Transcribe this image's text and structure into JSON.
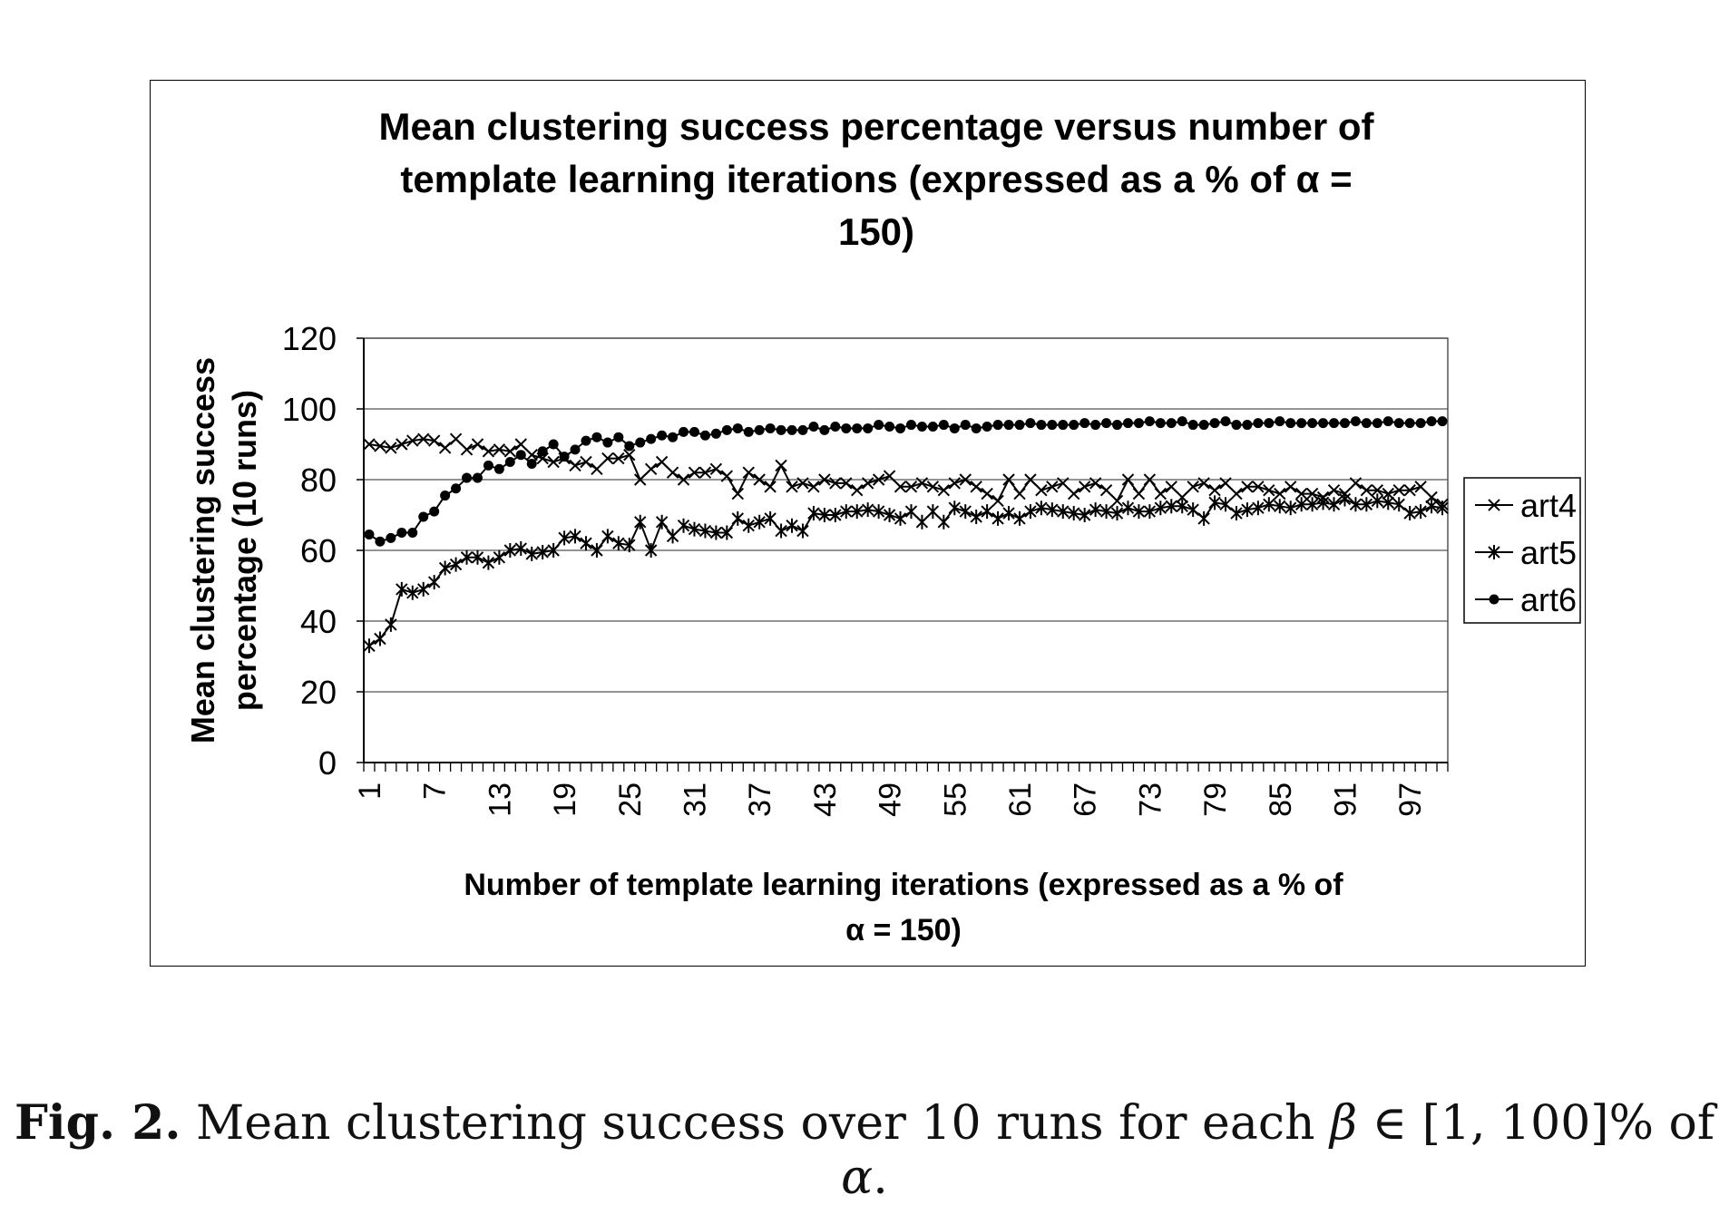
{
  "chart_data": {
    "type": "line",
    "title_lines": [
      "Mean clustering success percentage versus number of",
      "template learning iterations (expressed as a % of α =",
      "150)"
    ],
    "ylabel_lines": [
      "Mean clustering success",
      "percentage (10 runs)"
    ],
    "xlabel_lines": [
      "Number of template learning iterations (expressed as a % of",
      "α = 150)"
    ],
    "ylim": [
      0,
      120
    ],
    "yticks": [
      0,
      20,
      40,
      60,
      80,
      100,
      120
    ],
    "x_range": [
      1,
      100
    ],
    "xtick_labels": [
      1,
      7,
      13,
      19,
      25,
      31,
      37,
      43,
      49,
      55,
      61,
      67,
      73,
      79,
      85,
      91,
      97
    ],
    "grid": true,
    "legend_position": "right",
    "series": [
      {
        "name": "art4",
        "marker": "x",
        "values": [
          90,
          89.5,
          89,
          90,
          91,
          91.5,
          91,
          89,
          91.5,
          88.5,
          90,
          88,
          88.5,
          88,
          90,
          87,
          86,
          85,
          86,
          84,
          85,
          83,
          86,
          86,
          87,
          80,
          83,
          85,
          82,
          80,
          82,
          82,
          83,
          81,
          76,
          82,
          80,
          78,
          84,
          78,
          79,
          78,
          80,
          79,
          79,
          77,
          79,
          80,
          81,
          78,
          78,
          79,
          78,
          77,
          79,
          80,
          78,
          76,
          74,
          80,
          76,
          80,
          77,
          78,
          79,
          76,
          78,
          79,
          77,
          74,
          80,
          76,
          80,
          76,
          78,
          75,
          78,
          79,
          77,
          79,
          76,
          78,
          78,
          77,
          76,
          78,
          76,
          76,
          75,
          77,
          76,
          79,
          77,
          77,
          76,
          77,
          77,
          78,
          75,
          73
        ]
      },
      {
        "name": "art5",
        "marker": "asterisk",
        "values": [
          33,
          35,
          39,
          49,
          48,
          49,
          51,
          55,
          56,
          58,
          58,
          56.5,
          58,
          60,
          60.5,
          59,
          59.5,
          60,
          63.5,
          64,
          62,
          60,
          64,
          62,
          61.5,
          68,
          60,
          68,
          64,
          67,
          66,
          65.5,
          65,
          65,
          69,
          67,
          68,
          69,
          65.5,
          67,
          65.5,
          70.5,
          70,
          70,
          71,
          71,
          71.5,
          71,
          70,
          69,
          71,
          68,
          71,
          68,
          72,
          71,
          69.5,
          71,
          69,
          70.5,
          69,
          71,
          72,
          71.5,
          71,
          70.5,
          70,
          71.5,
          71,
          70.5,
          72,
          71,
          71,
          72,
          72.5,
          72.5,
          71.5,
          69,
          73.5,
          73,
          70.5,
          71.5,
          72,
          73,
          72.5,
          72,
          73,
          73,
          73.5,
          73,
          74.5,
          73,
          73,
          74,
          73.5,
          73,
          70.5,
          71,
          72.5,
          72
        ]
      },
      {
        "name": "art6",
        "marker": "dot",
        "values": [
          64.5,
          62.5,
          63.5,
          65,
          65,
          69.5,
          71,
          75.5,
          77.5,
          80.5,
          80.5,
          84,
          83,
          85,
          87,
          84.5,
          88,
          90,
          86.5,
          88.5,
          91,
          92,
          90.5,
          92,
          89.5,
          90.5,
          91.5,
          92.5,
          92,
          93.5,
          93.5,
          92.5,
          93,
          94,
          94.5,
          93.5,
          94,
          94.5,
          94,
          94,
          94,
          95,
          94,
          95,
          94.5,
          94.5,
          94.5,
          95.5,
          95,
          94.5,
          95.5,
          95,
          95,
          95.5,
          94.5,
          95.5,
          94.5,
          95,
          95.5,
          95.5,
          95.5,
          96,
          95.5,
          95.5,
          95.5,
          95.5,
          96,
          95.5,
          96,
          95.5,
          96,
          96,
          96.5,
          96,
          96,
          96.5,
          95.5,
          95.5,
          96,
          96.5,
          95.5,
          95.5,
          96,
          96,
          96.5,
          96,
          96,
          96,
          96,
          96,
          96,
          96.5,
          96,
          96,
          96.5,
          96,
          96,
          96,
          96.5,
          96.5
        ]
      }
    ]
  },
  "caption": {
    "label": "Fig. 2.",
    "text_before": " Mean clustering success over 10 runs for each ",
    "beta": "β",
    "middle": " ∈ [1, 100]% of ",
    "alpha": "α",
    "end": "."
  }
}
